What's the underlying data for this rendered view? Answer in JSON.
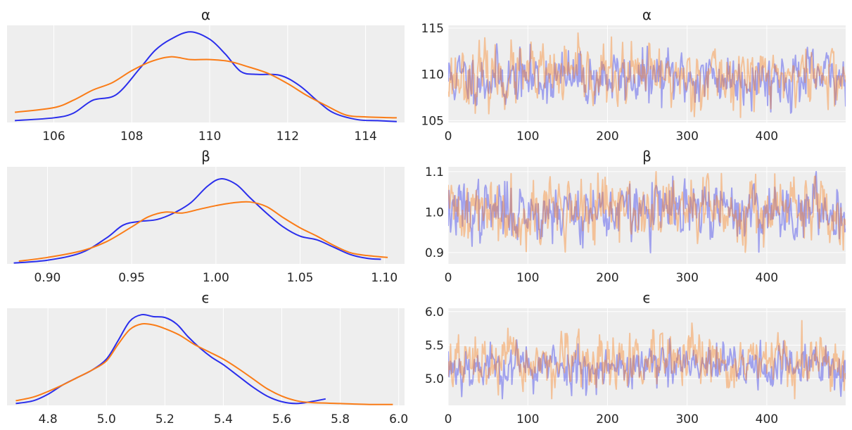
{
  "chart_data": [
    {
      "type": "line",
      "panel": "density",
      "title": "α",
      "xlim": [
        104.8,
        115.0
      ],
      "xticks": [
        106,
        108,
        110,
        112,
        114
      ],
      "series": [
        {
          "color": "#2a2eec",
          "x": [
            105.0,
            106.0,
            106.5,
            107.0,
            107.6,
            108.2,
            108.6,
            109.0,
            109.5,
            110.0,
            110.4,
            110.8,
            111.2,
            111.8,
            112.3,
            112.8,
            113.2,
            113.8,
            114.3,
            114.8
          ],
          "y": [
            0.02,
            0.05,
            0.1,
            0.24,
            0.3,
            0.58,
            0.78,
            0.9,
            0.98,
            0.9,
            0.74,
            0.55,
            0.52,
            0.51,
            0.4,
            0.22,
            0.1,
            0.03,
            0.02,
            0.01
          ]
        },
        {
          "color": "#fa7c17",
          "x": [
            105.0,
            106.0,
            106.5,
            107.0,
            107.5,
            108.0,
            108.5,
            109.0,
            109.5,
            110.0,
            110.5,
            111.0,
            111.5,
            112.0,
            112.5,
            113.0,
            113.5,
            114.0,
            114.8
          ],
          "y": [
            0.11,
            0.16,
            0.24,
            0.35,
            0.43,
            0.56,
            0.66,
            0.71,
            0.68,
            0.68,
            0.66,
            0.6,
            0.53,
            0.42,
            0.29,
            0.18,
            0.08,
            0.06,
            0.05
          ]
        }
      ],
      "ylim": [
        0,
        1.05
      ]
    },
    {
      "type": "line",
      "panel": "trace",
      "title": "α",
      "xlim": [
        0,
        499
      ],
      "ylim": [
        104.8,
        115.3
      ],
      "xticks": [
        0,
        100,
        200,
        300,
        400
      ],
      "yticks": [
        105,
        110,
        115
      ],
      "n_draws": 500,
      "series": [
        {
          "color": "#2a2eec",
          "alpha": 0.4,
          "mean": 109.6,
          "sd": 1.45,
          "lo": 105.0,
          "hi": 114.9,
          "seed": 11
        },
        {
          "color": "#fa7c17",
          "alpha": 0.4,
          "mean": 109.8,
          "sd": 1.6,
          "lo": 105.0,
          "hi": 115.0,
          "seed": 23
        }
      ]
    },
    {
      "type": "line",
      "panel": "density",
      "title": "β",
      "xlim": [
        0.876,
        1.112
      ],
      "xticks": [
        0.9,
        0.95,
        1.0,
        1.05,
        1.1
      ],
      "series": [
        {
          "color": "#2a2eec",
          "x": [
            0.88,
            0.9,
            0.92,
            0.935,
            0.945,
            0.955,
            0.965,
            0.975,
            0.985,
            0.995,
            1.003,
            1.012,
            1.02,
            1.03,
            1.04,
            1.05,
            1.06,
            1.07,
            1.08,
            1.09,
            1.098
          ],
          "y": [
            0.01,
            0.04,
            0.12,
            0.28,
            0.42,
            0.46,
            0.48,
            0.55,
            0.66,
            0.84,
            0.92,
            0.86,
            0.72,
            0.55,
            0.4,
            0.3,
            0.26,
            0.18,
            0.1,
            0.06,
            0.05
          ]
        },
        {
          "color": "#fa7c17",
          "x": [
            0.883,
            0.9,
            0.92,
            0.935,
            0.95,
            0.96,
            0.97,
            0.98,
            0.99,
            1.0,
            1.01,
            1.02,
            1.03,
            1.04,
            1.05,
            1.06,
            1.07,
            1.08,
            1.09,
            1.102
          ],
          "y": [
            0.03,
            0.07,
            0.14,
            0.24,
            0.4,
            0.51,
            0.56,
            0.55,
            0.59,
            0.63,
            0.66,
            0.67,
            0.62,
            0.5,
            0.39,
            0.3,
            0.2,
            0.12,
            0.09,
            0.07
          ]
        }
      ],
      "ylim": [
        0,
        1.05
      ]
    },
    {
      "type": "line",
      "panel": "trace",
      "title": "β",
      "xlim": [
        0,
        499
      ],
      "ylim": [
        0.872,
        1.112
      ],
      "xticks": [
        0,
        100,
        200,
        300,
        400
      ],
      "yticks": [
        0.9,
        1.0,
        1.1
      ],
      "n_draws": 500,
      "series": [
        {
          "color": "#2a2eec",
          "alpha": 0.4,
          "mean": 1.003,
          "sd": 0.036,
          "lo": 0.88,
          "hi": 1.1,
          "seed": 37
        },
        {
          "color": "#fa7c17",
          "alpha": 0.4,
          "mean": 1.005,
          "sd": 0.04,
          "lo": 0.885,
          "hi": 1.1,
          "seed": 41
        }
      ]
    },
    {
      "type": "line",
      "panel": "density",
      "title": "ϵ",
      "xlim": [
        4.66,
        6.02
      ],
      "xticks": [
        4.8,
        5.0,
        5.2,
        5.4,
        5.6,
        5.8,
        6.0
      ],
      "series": [
        {
          "color": "#2a2eec",
          "x": [
            4.69,
            4.75,
            4.8,
            4.85,
            4.9,
            4.95,
            5.0,
            5.04,
            5.08,
            5.12,
            5.16,
            5.2,
            5.24,
            5.28,
            5.32,
            5.36,
            5.4,
            5.45,
            5.5,
            5.55,
            5.6,
            5.65,
            5.7,
            5.75
          ],
          "y": [
            0.02,
            0.05,
            0.12,
            0.22,
            0.3,
            0.38,
            0.5,
            0.7,
            0.91,
            0.98,
            0.96,
            0.95,
            0.88,
            0.74,
            0.62,
            0.52,
            0.44,
            0.32,
            0.2,
            0.1,
            0.04,
            0.02,
            0.04,
            0.07
          ]
        },
        {
          "color": "#fa7c17",
          "x": [
            4.69,
            4.75,
            4.8,
            4.85,
            4.9,
            4.95,
            5.0,
            5.04,
            5.08,
            5.12,
            5.16,
            5.2,
            5.25,
            5.3,
            5.35,
            5.4,
            5.45,
            5.5,
            5.55,
            5.6,
            5.65,
            5.7,
            5.8,
            5.9,
            5.98
          ],
          "y": [
            0.05,
            0.09,
            0.15,
            0.22,
            0.3,
            0.38,
            0.48,
            0.66,
            0.82,
            0.88,
            0.87,
            0.83,
            0.76,
            0.66,
            0.58,
            0.5,
            0.4,
            0.29,
            0.18,
            0.1,
            0.05,
            0.03,
            0.02,
            0.01,
            0.01
          ]
        }
      ],
      "ylim": [
        0,
        1.05
      ]
    },
    {
      "type": "line",
      "panel": "trace",
      "title": "ϵ",
      "xlim": [
        0,
        499
      ],
      "ylim": [
        4.6,
        6.05
      ],
      "xticks": [
        0,
        100,
        200,
        300,
        400
      ],
      "yticks": [
        5.0,
        5.5,
        6.0
      ],
      "n_draws": 500,
      "series": [
        {
          "color": "#2a2eec",
          "alpha": 0.4,
          "mean": 5.18,
          "sd": 0.17,
          "lo": 4.7,
          "hi": 5.8,
          "seed": 53
        },
        {
          "color": "#fa7c17",
          "alpha": 0.4,
          "mean": 5.22,
          "sd": 0.2,
          "lo": 4.7,
          "hi": 6.0,
          "seed": 67
        }
      ]
    }
  ]
}
